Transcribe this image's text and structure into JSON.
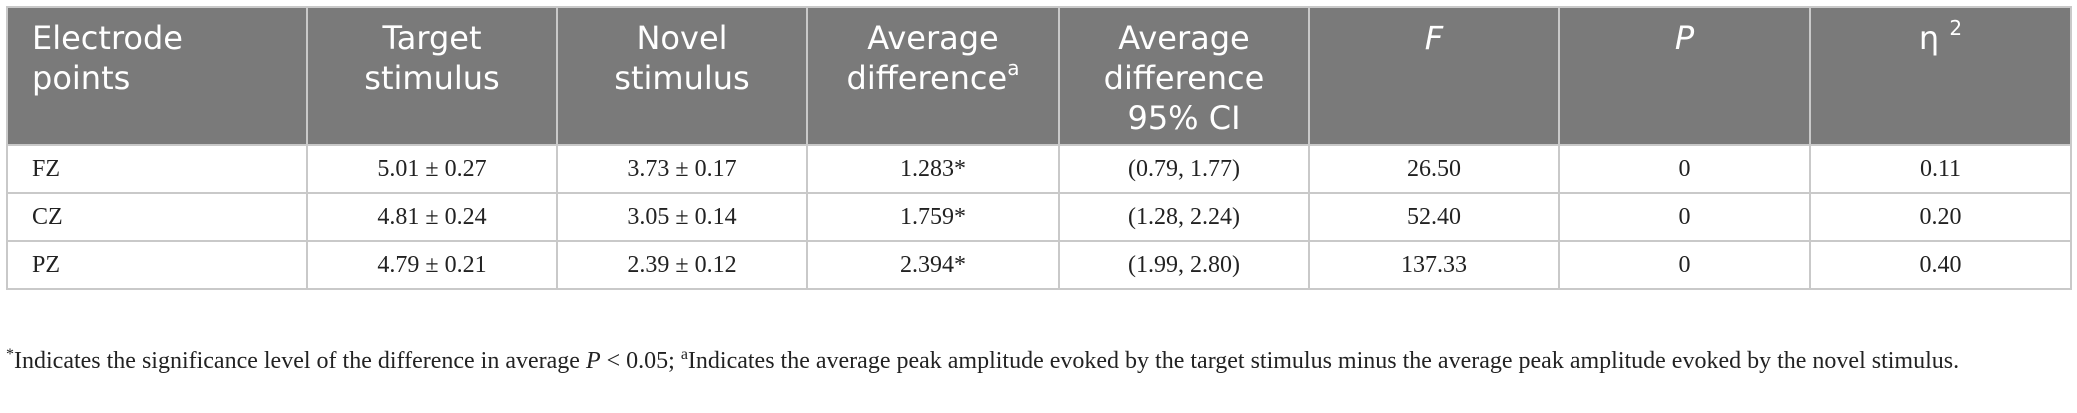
{
  "table": {
    "headers": {
      "electrode_line1": "Electrode",
      "electrode_line2": "points",
      "target_line1": "Target",
      "target_line2": "stimulus",
      "novel_line1": "Novel",
      "novel_line2": "stimulus",
      "avgdiff_line1": "Average",
      "avgdiff_line2": "difference",
      "avgdiff_sup": "a",
      "ci_line1": "Average",
      "ci_line2": "difference",
      "ci_line3": "95% CI",
      "f": "F",
      "p": "P",
      "eta": "η",
      "eta_sup": "2"
    },
    "rows": [
      {
        "electrode": "FZ",
        "target": "5.01 ± 0.27",
        "novel": "3.73 ± 0.17",
        "avg_diff": "1.283*",
        "ci": "(0.79, 1.77)",
        "f": "26.50",
        "p": "0",
        "eta2": "0.11"
      },
      {
        "electrode": "CZ",
        "target": "4.81 ± 0.24",
        "novel": "3.05 ± 0.14",
        "avg_diff": "1.759*",
        "ci": "(1.28, 2.24)",
        "f": "52.40",
        "p": "0",
        "eta2": "0.20"
      },
      {
        "electrode": "PZ",
        "target": "4.79 ± 0.21",
        "novel": "2.39 ± 0.12",
        "avg_diff": "2.394*",
        "ci": "(1.99, 2.80)",
        "f": "137.33",
        "p": "0",
        "eta2": "0.40"
      }
    ]
  },
  "footnote": {
    "star": "*",
    "part1": "Indicates the significance level of the difference in average ",
    "p_symbol": "P",
    "part2": " < 0.05; ",
    "sup_a": "a",
    "part3": "Indicates the average peak amplitude evoked by the target stimulus minus the average peak amplitude evoked by the novel stimulus."
  }
}
